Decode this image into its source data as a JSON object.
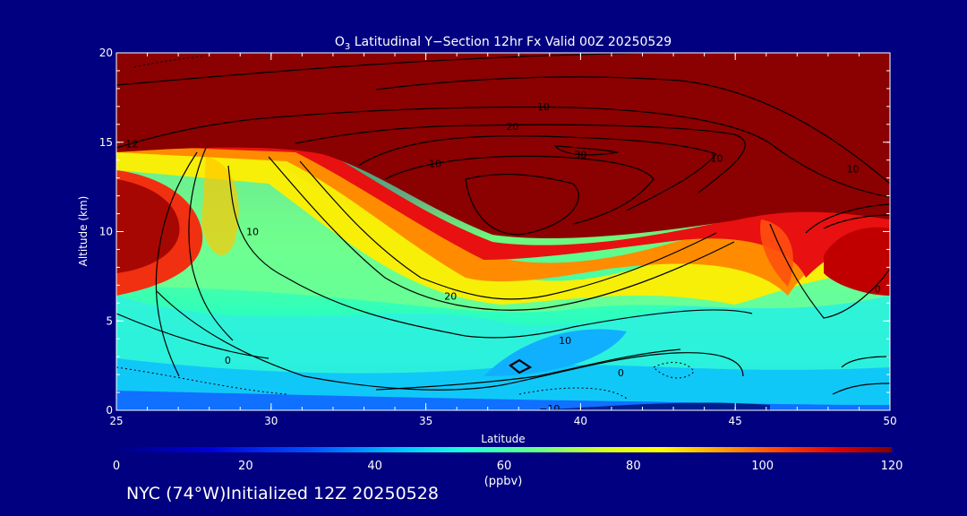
{
  "chart_data": {
    "type": "heatmap",
    "title_prefix": "O",
    "title_sub": "3",
    "title_rest": " Latitudinal Y−Section 12hr  Fx Valid 00Z 20250529",
    "xlabel": "Latitude",
    "ylabel": "Altitude (km)",
    "xlim": [
      25,
      50
    ],
    "ylim": [
      0,
      20
    ],
    "xticks": [
      "25",
      "30",
      "35",
      "40",
      "45",
      "50"
    ],
    "yticks": [
      "0",
      "5",
      "10",
      "15",
      "20"
    ],
    "colorbar": {
      "range": [
        0,
        120
      ],
      "ticks": [
        "0",
        "20",
        "40",
        "60",
        "80",
        "100",
        "120"
      ],
      "units": "(ppbv)"
    },
    "contours": [
      {
        "label": "10",
        "lat": 38.8,
        "alt": 17.0
      },
      {
        "label": "20",
        "lat": 37.8,
        "alt": 15.9
      },
      {
        "label": "30",
        "lat": 40.0,
        "alt": 14.3
      },
      {
        "label": "10",
        "lat": 35.3,
        "alt": 13.8
      },
      {
        "label": "10",
        "lat": 29.4,
        "alt": 10.0
      },
      {
        "label": "10",
        "lat": 44.4,
        "alt": 14.1
      },
      {
        "label": "10",
        "lat": 48.8,
        "alt": 13.5
      },
      {
        "label": "20",
        "lat": 35.8,
        "alt": 6.4
      },
      {
        "label": "10",
        "lat": 39.5,
        "alt": 3.9
      },
      {
        "label": "0",
        "lat": 28.6,
        "alt": 2.8
      },
      {
        "label": "0",
        "lat": 41.3,
        "alt": 2.1
      },
      {
        "label": "0",
        "lat": 49.6,
        "alt": 6.8
      },
      {
        "label": "−10",
        "lat": 39.0,
        "alt": 0.1
      },
      {
        "label": "12",
        "lat": 25.5,
        "alt": 14.9
      }
    ]
  },
  "footer": {
    "station": "NYC (74°W)",
    "initialized": "Initialized 12Z 20250528"
  }
}
